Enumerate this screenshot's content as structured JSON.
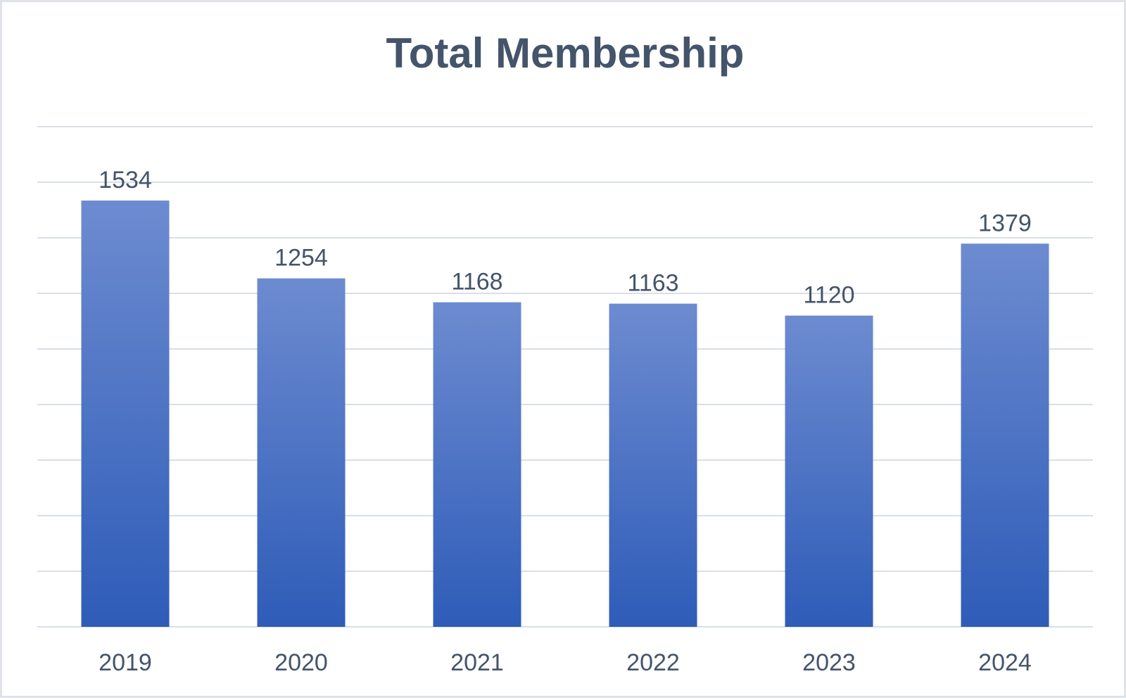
{
  "chart_data": {
    "type": "bar",
    "title": "Total Membership",
    "categories": [
      "2019",
      "2020",
      "2021",
      "2022",
      "2023",
      "2024"
    ],
    "series": [
      {
        "values": [
          1534,
          1254,
          1168,
          1163,
          1120,
          1379
        ]
      }
    ],
    "xlabel": "",
    "ylabel": "",
    "ylim": [
      0,
      1800
    ],
    "grid": true,
    "legend": "none",
    "data_labels": true,
    "colors": {
      "bar_top": "#6d8bd0",
      "bar_bottom": "#2e5cb8",
      "text": "#44546a",
      "grid": "#d9dfe8"
    }
  }
}
